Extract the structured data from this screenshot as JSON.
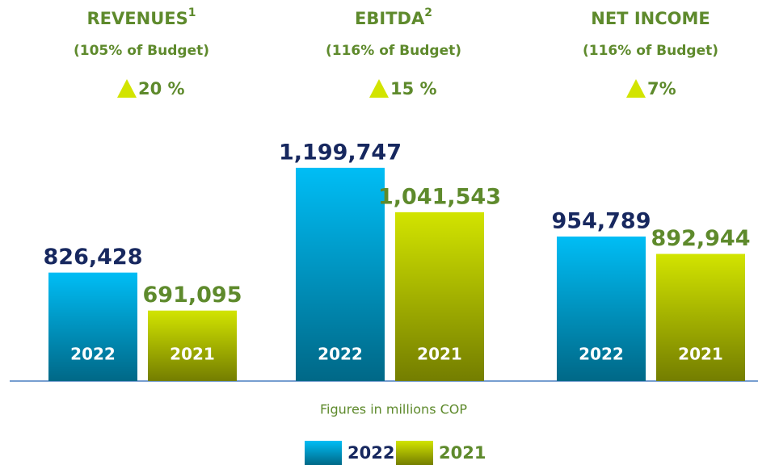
{
  "chart_data": {
    "type": "bar",
    "categories": [
      "REVENUES",
      "EBITDA",
      "NET INCOME"
    ],
    "category_notes": [
      "1",
      "2",
      null
    ],
    "subtitles": [
      "(105% of Budget)",
      "(116% of Budget)",
      "(116% of Budget)"
    ],
    "changes": [
      "20 %",
      "15 %",
      "7%"
    ],
    "series": [
      {
        "name": "2022",
        "color": "#00bdf5",
        "label_color": "#17285f",
        "values": [
          826428,
          1199747,
          954789
        ],
        "value_labels": [
          "826,428",
          "1,199,747",
          "954,789"
        ]
      },
      {
        "name": "2021",
        "color": "#d2e400",
        "label_color": "#5e8a2c",
        "values": [
          691095,
          1041543,
          892944
        ],
        "value_labels": [
          "691,095",
          "1,041,543",
          "892,944"
        ]
      }
    ],
    "ylim": [
      440000,
      1300000
    ],
    "note": "Figures in millions COP"
  }
}
